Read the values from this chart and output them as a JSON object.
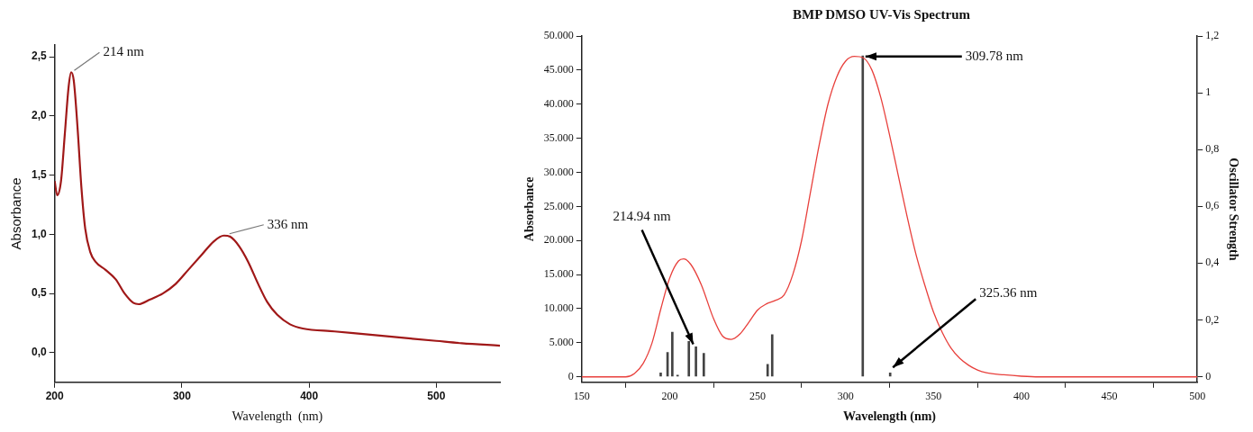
{
  "chart_data": [
    {
      "type": "line",
      "xlabel": "Wavelength  (nm)",
      "ylabel": "Absorbance",
      "xlim": [
        200,
        550
      ],
      "xticks": [
        200,
        300,
        400,
        500
      ],
      "ylim": [
        -0.25,
        2.6
      ],
      "yticks": [
        {
          "value": 0,
          "label": "0,0"
        },
        {
          "value": 0.5,
          "label": "0,5"
        },
        {
          "value": 1,
          "label": "1,0"
        },
        {
          "value": 1.5,
          "label": "1,5"
        },
        {
          "value": 2,
          "label": "2,0"
        },
        {
          "value": 2.5,
          "label": "2,5"
        }
      ],
      "series": [
        {
          "color": "#a01818",
          "x": [
            200,
            202,
            205,
            208,
            211,
            213,
            215,
            218,
            221,
            224,
            228,
            232,
            240,
            248,
            255,
            262,
            266,
            275,
            285,
            295,
            305,
            315,
            325,
            333,
            338,
            345,
            352,
            360,
            367,
            375,
            385,
            395,
            420,
            450,
            480,
            500,
            520,
            550
          ],
          "values": [
            1.45,
            1.33,
            1.45,
            1.85,
            2.25,
            2.37,
            2.3,
            1.9,
            1.4,
            1.05,
            0.85,
            0.77,
            0.7,
            0.62,
            0.5,
            0.42,
            0.41,
            0.45,
            0.5,
            0.58,
            0.7,
            0.82,
            0.94,
            0.99,
            0.98,
            0.9,
            0.77,
            0.58,
            0.43,
            0.32,
            0.24,
            0.205,
            0.18,
            0.15,
            0.12,
            0.1,
            0.08,
            0.06
          ]
        }
      ],
      "annotations": [
        {
          "text": "214 nm",
          "x": 214,
          "y": 2.37
        },
        {
          "text": "336 nm",
          "x": 336,
          "y": 0.99
        }
      ],
      "grid": false,
      "legend": false,
      "marker": "none",
      "line_style": "solid"
    },
    {
      "type": "line",
      "title": "BMP DMSO UV-Vis Spectrum",
      "xlabel": "Wavelength (nm)",
      "ylabel": "Absorbance",
      "y2label": "Oscillator Strength",
      "xlim": [
        150,
        500
      ],
      "xticks": [
        150,
        200,
        250,
        300,
        350,
        400,
        450,
        500
      ],
      "ylim": [
        -800,
        50000
      ],
      "yticks": [
        0,
        {
          "value": 5000,
          "label": "5.000"
        },
        {
          "value": 10000,
          "label": "10.000"
        },
        {
          "value": 15000,
          "label": "15.000"
        },
        {
          "value": 20000,
          "label": "20.000"
        },
        {
          "value": 25000,
          "label": "25.000"
        },
        {
          "value": 30000,
          "label": "30.000"
        },
        {
          "value": 35000,
          "label": "35.000"
        },
        {
          "value": 40000,
          "label": "40.000"
        },
        {
          "value": 45000,
          "label": "45.000"
        },
        {
          "value": 50000,
          "label": "50.000"
        }
      ],
      "y2lim": [
        -0.02,
        1.2
      ],
      "y2ticks": [
        0,
        {
          "value": 0.2,
          "label": "0,2"
        },
        {
          "value": 0.4,
          "label": "0,4"
        },
        {
          "value": 0.6,
          "label": "0,6"
        },
        {
          "value": 0.8,
          "label": "0,8"
        },
        1,
        {
          "value": 1.2,
          "label": "1,2"
        }
      ],
      "series": [
        {
          "color": "#e8403c",
          "x": [
            150,
            175,
            180,
            185,
            190,
            195,
            200,
            205,
            208,
            212,
            218,
            225,
            230,
            235,
            240,
            245,
            250,
            255,
            260,
            265,
            270,
            275,
            280,
            285,
            290,
            295,
            300,
            305,
            310,
            315,
            320,
            325,
            330,
            335,
            340,
            345,
            350,
            355,
            360,
            365,
            370,
            375,
            380,
            390,
            400,
            410,
            500
          ],
          "values": [
            0,
            0,
            500,
            2000,
            5000,
            10000,
            14500,
            17000,
            17300,
            16500,
            13500,
            8500,
            6000,
            5500,
            6300,
            8000,
            9800,
            10700,
            11200,
            12000,
            15000,
            20000,
            27000,
            34000,
            40000,
            44000,
            46300,
            47000,
            46800,
            45000,
            41000,
            35500,
            29500,
            23500,
            18000,
            13500,
            9500,
            6500,
            4200,
            2700,
            1700,
            1000,
            600,
            300,
            100,
            0,
            0
          ]
        },
        {
          "type": "bar",
          "axis": "y2",
          "color": "#444444",
          "x": [
            194.9,
            198.8,
            201.5,
            204.5,
            210.9,
            214.94,
            219.4,
            255.7,
            258.3,
            309.78,
            325.36
          ],
          "values": [
            0.013,
            0.085,
            0.157,
            0.005,
            0.124,
            0.105,
            0.082,
            0.043,
            0.148,
            1.13,
            0.013
          ]
        }
      ],
      "annotations": [
        {
          "text": "309.78 nm",
          "x": 309.78,
          "y": 47000
        },
        {
          "text": "214.94 nm",
          "x": 214.94,
          "y": 4400
        },
        {
          "text": "325.36 nm",
          "x": 325.36,
          "y": 1000
        }
      ],
      "grid": false,
      "legend": false,
      "marker": "none",
      "line_style": "solid"
    }
  ]
}
